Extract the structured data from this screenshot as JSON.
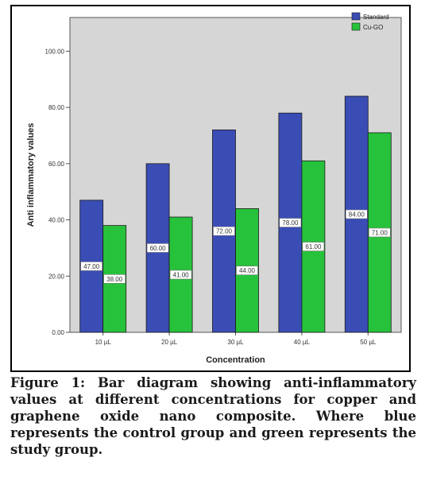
{
  "caption": "Figure 1: Bar diagram showing anti-inflammatory values at different concentrations for copper and graphene oxide nano composite. Where blue represents the control group and green represents the study group.",
  "colors": {
    "plot_background": "#d6d6d6",
    "standard_bar": "#3a4db5",
    "cu_go_bar": "#27c23c",
    "bar_outline": "#1a1a1a",
    "label_box": "#ffffff"
  },
  "chart_data": {
    "type": "bar",
    "xlabel": "Concentration",
    "ylabel": "Anti inflammatory values",
    "categories": [
      "10 µL",
      "20 µL",
      "30 µL",
      "40 µL",
      "50 µL"
    ],
    "ylim": [
      0,
      112
    ],
    "yticks": [
      0,
      20,
      40,
      60,
      80,
      100
    ],
    "ytick_labels": [
      "0.00",
      "20.00",
      "40.00",
      "60.00",
      "80.00",
      "100.00"
    ],
    "grid": false,
    "legend_position": "top-right",
    "series": [
      {
        "name": "Standard",
        "values": [
          47,
          60,
          72,
          78,
          84
        ],
        "data_labels": [
          "47.00",
          "60.00",
          "72.00",
          "78.00",
          "84.00"
        ]
      },
      {
        "name": "Cu-GO",
        "values": [
          38,
          41,
          44,
          61,
          71
        ],
        "data_labels": [
          "38.00",
          "41.00",
          "44.00",
          "61.00",
          "71.00"
        ]
      }
    ]
  }
}
